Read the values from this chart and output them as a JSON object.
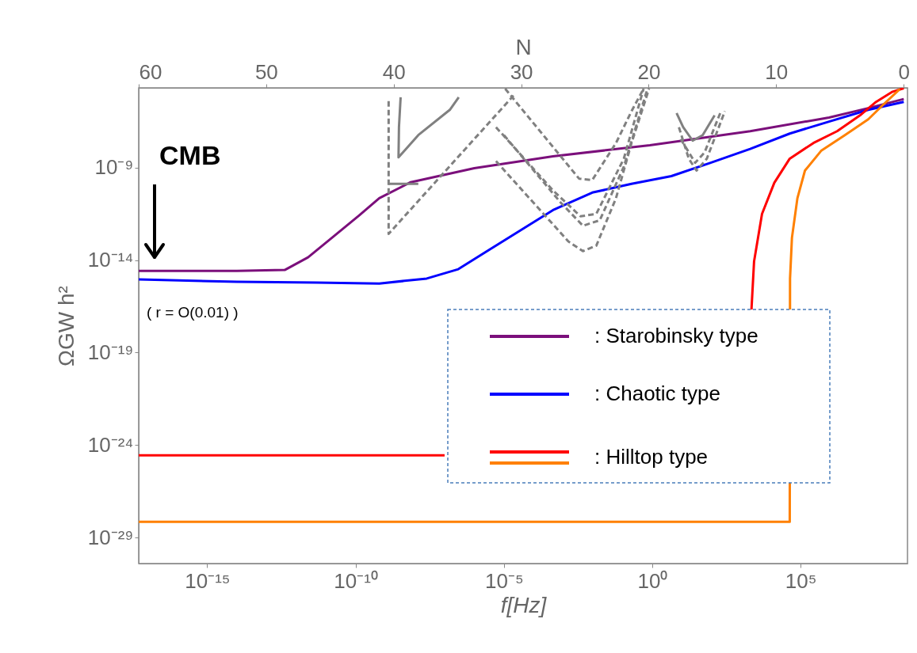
{
  "chart_data": {
    "type": "line",
    "xlabel": "f[Hz]",
    "ylabel": "ΩGW h²",
    "x2label": "N",
    "log": "xy",
    "legend": "bottom right",
    "xlim": [
      4.9e-18,
      400000000.0
    ],
    "ylim": [
      4e-31,
      2e-05
    ],
    "x2lim": [
      60,
      -0.3
    ],
    "xticks": [
      {
        "value": 1e-15,
        "label": "10⁻¹⁵"
      },
      {
        "value": 1e-10,
        "label": "10⁻¹⁰"
      },
      {
        "value": 1e-05,
        "label": "10⁻⁵"
      },
      {
        "value": 1,
        "label": "10⁰"
      },
      {
        "value": 100000.0,
        "label": "10⁵"
      }
    ],
    "yticks": [
      {
        "value": 1e-29,
        "label": "10⁻²⁹"
      },
      {
        "value": 1e-24,
        "label": "10⁻²⁴"
      },
      {
        "value": 1e-19,
        "label": "10⁻¹⁹"
      },
      {
        "value": 1e-14,
        "label": "10⁻¹⁴"
      },
      {
        "value": 1e-09,
        "label": "10⁻⁹"
      }
    ],
    "x2ticks": [
      60,
      50,
      40,
      30,
      20,
      10,
      0
    ],
    "annotations": [
      "CMB",
      "( r = O(0.01) )"
    ],
    "series": [
      {
        "name": ": Starobinsky type",
        "color": "#7b0f7b",
        "line_style": "solid",
        "x": [
          4.9e-18,
          1e-14,
          4.1e-13,
          2.5e-12,
          1.6e-11,
          1.3e-10,
          6.3e-10,
          7.2e-09,
          1e-06,
          0.00045,
          0.83,
          2000,
          910000.0,
          19000000.0,
          300000000.0
        ],
        "values": [
          2.6e-15,
          2.6e-15,
          2.9e-15,
          1.4e-14,
          1.6e-13,
          2.5e-12,
          2.2e-11,
          1.6e-10,
          9.1e-10,
          4e-09,
          1.6e-08,
          9.1e-08,
          5e-07,
          1.6e-06,
          5e-06
        ]
      },
      {
        "name": ": Chaotic type",
        "color": "#0000ff",
        "line_style": "solid",
        "x": [
          4.9e-18,
          1e-14,
          4.7e-12,
          6.3e-10,
          2.5e-08,
          2.9e-07,
          3.3e-06,
          3.9e-05,
          0.00045,
          0.0095,
          0.2,
          4.4,
          93,
          2000,
          43000.0,
          910000.0,
          19000000.0,
          300000000.0
        ],
        "values": [
          8.9e-16,
          6.6e-16,
          6e-16,
          5.4e-16,
          1e-15,
          3.2e-15,
          3.7e-14,
          4.3e-13,
          5e-12,
          4.4e-11,
          1.3e-10,
          3.4e-10,
          1.8e-09,
          1e-08,
          6.8e-08,
          3e-07,
          1.3e-06,
          3.5e-06
        ]
      },
      {
        "name": ": Hilltop type",
        "color": "#ff0000",
        "line_style": "solid",
        "x": [
          4.9e-18,
          1e-07,
          null,
          2200.0,
          2700.0,
          5000.0,
          13000.0,
          43000.0,
          270000.0,
          1700000.0,
          10000000.0,
          35000000.0,
          120000000.0,
          300000000.0
        ],
        "values": [
          2.8e-25,
          2.8e-25,
          null,
          2e-17,
          8.5e-15,
          3.1e-12,
          1.5e-10,
          3e-09,
          2.1e-08,
          9.1e-08,
          6.5e-07,
          3.5e-06,
          1.2e-05,
          1.9e-05
        ]
      },
      {
        "color": "#ff8000",
        "line_style": "solid",
        "x": [
          4.9e-18,
          43000.0,
          44000.0,
          51000.0,
          78000.0,
          140000.0,
          490000.0,
          3100000.0,
          19000000.0,
          66000000.0,
          220000000.0
        ],
        "values": [
          7.2e-29,
          7.2e-29,
          1e-15,
          1.6e-13,
          2.2e-11,
          6.8e-10,
          7.9e-09,
          5.6e-08,
          4e-07,
          2.8e-06,
          1.7e-05
        ]
      },
      {
        "color": "#808080",
        "line_style": "dashed",
        "x": [
          1.3e-09,
          1.3e-09,
          2.1e-05
        ],
        "values": [
          3.8e-06,
          2.6e-13,
          7.6e-06
        ]
      },
      {
        "color": "#808080",
        "line_style": "solid",
        "x": [
          3.3e-09,
          2.9e-09,
          2.8e-09,
          1.3e-08,
          1.5e-07,
          3e-07
        ],
        "values": [
          6.2e-06,
          1.5e-07,
          3.5e-09,
          5.6e-08,
          1.3e-06,
          6.2e-06
        ]
      },
      {
        "color": "#808080",
        "line_style": "solid",
        "x": [
          1.3e-09,
          1.3e-08
        ],
        "values": [
          1.3e-10,
          1.3e-10
        ]
      },
      {
        "color": "#808080",
        "line_style": "dashed",
        "x": [
          1.1e-05,
          0.0034,
          0.0095,
          0.06,
          0.2,
          0.51
        ],
        "values": [
          1.8e-05,
          2.5e-10,
          2.1e-10,
          2.1e-08,
          1.1e-06,
          1.8e-05
        ]
      },
      {
        "color": "#808080",
        "line_style": "dashed",
        "x": [
          5.4e-06,
          0.00045,
          0.0038,
          0.013,
          0.11,
          0.51
        ],
        "values": [
          1.5e-07,
          5.8e-11,
          2.3e-12,
          3.1e-12,
          3e-09,
          1.8e-05
        ]
      },
      {
        "color": "#808080",
        "line_style": "dashed",
        "x": [
          1e-05,
          0.00081,
          0.0046,
          0.017,
          0.11,
          0.69
        ],
        "values": [
          5.6e-08,
          1.3e-11,
          7.1e-13,
          1.4e-12,
          1.1e-09,
          1.8e-05
        ]
      },
      {
        "color": "#808080",
        "line_style": "dashed",
        "x": [
          5.4e-06,
          0.0015,
          0.0046,
          0.013,
          0.06,
          0.2,
          0.78
        ],
        "values": [
          2.2e-09,
          1e-13,
          3e-14,
          6e-14,
          2.2e-11,
          2.1e-08,
          1.8e-05
        ]
      },
      {
        "color": "#808080",
        "line_style": "solid",
        "x": [
          6.6,
          11,
          23,
          50,
          126
        ],
        "values": [
          8.7e-07,
          1.5e-07,
          2.8e-08,
          5.6e-08,
          6.5e-07
        ]
      },
      {
        "color": "#808080",
        "line_style": "dashed",
        "x": [
          7.9,
          17,
          31,
          69,
          280
        ],
        "values": [
          1.5e-07,
          3e-09,
          6.8e-10,
          3e-09,
          1.1e-06
        ]
      },
      {
        "color": "#808080",
        "line_style": "dashed",
        "x": [
          9.1,
          28,
          58,
          195
        ],
        "values": [
          3.4e-08,
          1.8e-09,
          6.5e-09,
          8.7e-07
        ]
      }
    ]
  }
}
